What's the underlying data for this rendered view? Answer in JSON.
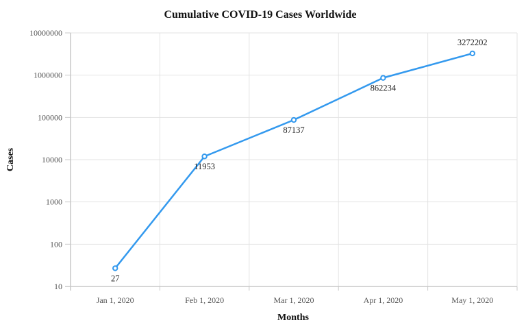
{
  "chart_data": {
    "type": "line",
    "title": "Cumulative COVID-19 Cases Worldwide",
    "xlabel": "Months",
    "ylabel": "Cases",
    "yscale": "log",
    "ylim": [
      10,
      10000000
    ],
    "categories": [
      "Jan 1, 2020",
      "Feb 1, 2020",
      "Mar 1, 2020",
      "Apr 1, 2020",
      "May 1, 2020"
    ],
    "series": [
      {
        "name": "Cases",
        "values": [
          27,
          11953,
          87137,
          862234,
          3272202
        ],
        "color": "#3399ee"
      }
    ],
    "y_ticks": [
      "10",
      "100",
      "1000",
      "10000",
      "100000",
      "1000000",
      "10000000"
    ],
    "data_labels": [
      "27",
      "11953",
      "87137",
      "862234",
      "3272202"
    ],
    "grid": true,
    "legend": "none"
  },
  "colors": {
    "line": "#3399ee",
    "grid": "#e3e3e3",
    "axis": "#c8c8c8"
  }
}
